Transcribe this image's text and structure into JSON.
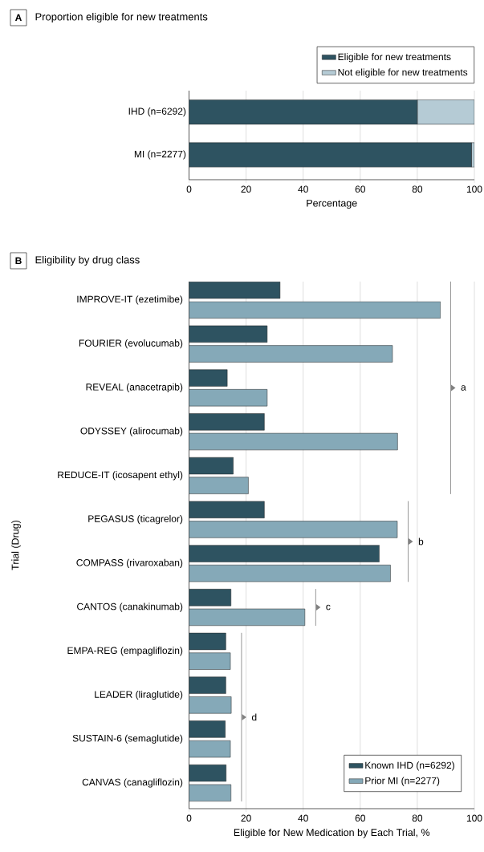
{
  "chart_data": [
    {
      "type": "bar",
      "orientation": "horizontal",
      "stacked": true,
      "title": "Proportion eligible for new treatments",
      "annotations": [
        "A"
      ],
      "categories": [
        "IHD (n=6292)",
        "MI (n=2277)"
      ],
      "series": [
        {
          "name": "Eligible for new treatments",
          "color": "#2e5361",
          "values": [
            80,
            99
          ]
        },
        {
          "name": "Not eligible for new treatments",
          "color": "#b5cbd5",
          "values": [
            20,
            1
          ]
        }
      ],
      "xlim": [
        0,
        100
      ],
      "xticks": [
        0,
        20,
        40,
        60,
        80,
        100
      ],
      "xlabel": "Percentage",
      "grid": "x",
      "legend": "top right"
    },
    {
      "type": "bar",
      "orientation": "horizontal",
      "title": "Eligibility by drug class",
      "annotations": [
        "B",
        "a",
        "b",
        "c",
        "d"
      ],
      "categories": [
        "IMPROVE-IT (ezetimibe)",
        "FOURIER (evolucumab)",
        "REVEAL (anacetrapib)",
        "ODYSSEY (alirocumab)",
        "REDUCE-IT (icosapent ethyl)",
        "PEGASUS (ticagrelor)",
        "COMPASS (rivaroxaban)",
        "CANTOS (canakinumab)",
        "EMPA-REG (empagliflozin)",
        "LEADER (liraglutide)",
        "SUSTAIN-6 (semaglutide)",
        "CANVAS (canagliflozin)"
      ],
      "series": [
        {
          "name": "Known IHD (n=6292)",
          "color": "#2e5361",
          "values": [
            31.9,
            27.4,
            13.4,
            26.4,
            15.5,
            26.4,
            66.7,
            14.7,
            12.9,
            12.9,
            12.7,
            13.0
          ]
        },
        {
          "name": "Prior MI (n=2277)",
          "color": "#85a9b8",
          "values": [
            88.1,
            71.3,
            27.4,
            73.1,
            20.8,
            73.0,
            70.6,
            40.6,
            14.5,
            14.8,
            14.5,
            14.7
          ]
        }
      ],
      "xlim": [
        0,
        100
      ],
      "xticks": [
        0,
        20,
        40,
        60,
        80,
        100
      ],
      "xlabel": "Eligible for New Medication by Each Trial, %",
      "ylabel": "Trial (Drug)",
      "grid": "x",
      "legend": "bottom right"
    }
  ]
}
